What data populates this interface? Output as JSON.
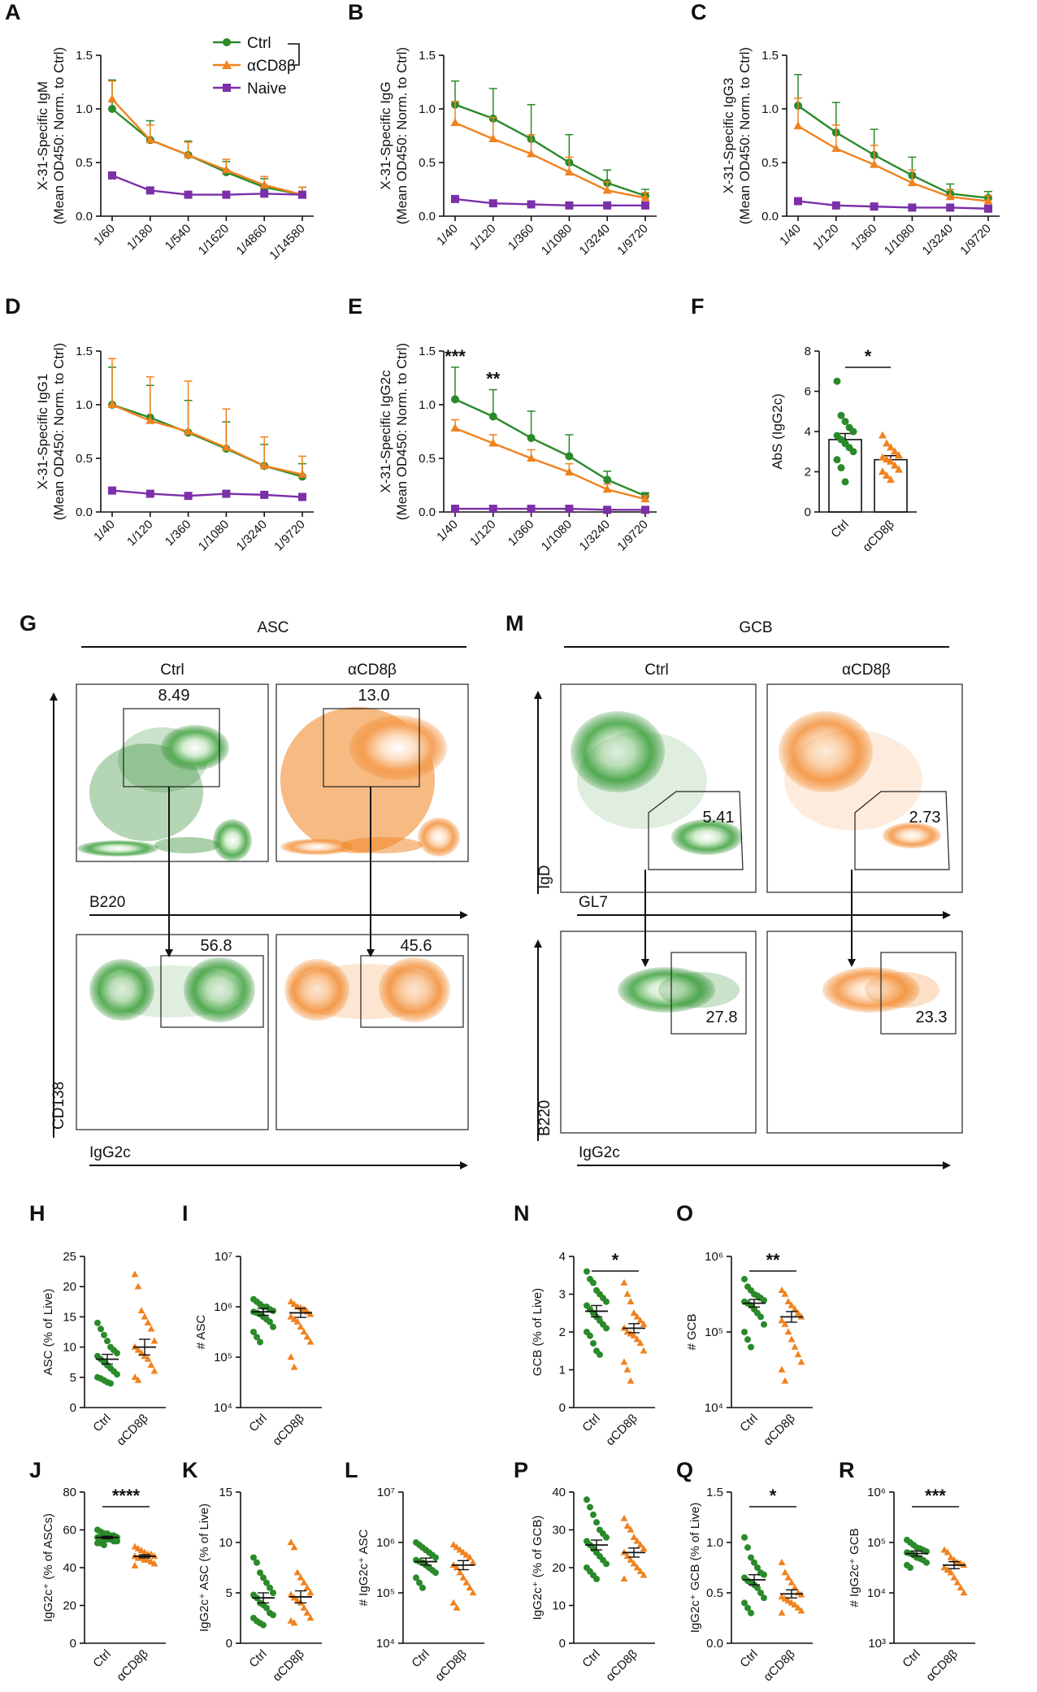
{
  "colors": {
    "ctrl": "#2a8a2a",
    "cd8": "#f0821e",
    "naive": "#7b2fa8",
    "axis": "#111111"
  },
  "legend": {
    "ctrl": "Ctrl",
    "cd8": "αCD8β",
    "naive": "Naive"
  },
  "chart_data": [
    {
      "panel": "A",
      "type": "line",
      "ylabel": "X-31-Specific IgM",
      "ylabel2": "(Mean OD450: Norm. to Ctrl)",
      "categories": [
        "1/60",
        "1/180",
        "1/540",
        "1/1620",
        "1/4860",
        "1/14580"
      ],
      "ylim": [
        0,
        1.5
      ],
      "yticks": [
        "0.0",
        "0.5",
        "1.0",
        "1.5"
      ],
      "series": [
        {
          "name": "Ctrl",
          "values": [
            1.0,
            0.71,
            0.57,
            0.41,
            0.27,
            0.2
          ],
          "err": [
            0.27,
            0.18,
            0.13,
            0.1,
            0.08,
            0.07
          ]
        },
        {
          "name": "αCD8β",
          "values": [
            1.09,
            0.71,
            0.57,
            0.43,
            0.29,
            0.2
          ],
          "err": [
            0.17,
            0.14,
            0.12,
            0.1,
            0.08,
            0.07
          ]
        },
        {
          "name": "Naive",
          "values": [
            0.38,
            0.24,
            0.2,
            0.2,
            0.21,
            0.2
          ],
          "err": [
            0,
            0,
            0,
            0,
            0,
            0
          ]
        }
      ]
    },
    {
      "panel": "B",
      "type": "line",
      "ylabel": "X-31-Specific IgG",
      "ylabel2": "(Mean OD450: Norm. to Ctrl)",
      "categories": [
        "1/40",
        "1/120",
        "1/360",
        "1/1080",
        "1/3240",
        "1/9720"
      ],
      "ylim": [
        0,
        1.5
      ],
      "yticks": [
        "0.0",
        "0.5",
        "1.0",
        "1.5"
      ],
      "series": [
        {
          "name": "Ctrl",
          "values": [
            1.04,
            0.91,
            0.72,
            0.5,
            0.31,
            0.19
          ],
          "err": [
            0.22,
            0.28,
            0.32,
            0.26,
            0.12,
            0.06
          ]
        },
        {
          "name": "αCD8β",
          "values": [
            0.87,
            0.72,
            0.58,
            0.41,
            0.24,
            0.17
          ],
          "err": [
            0.2,
            0.2,
            0.18,
            0.14,
            0.08,
            0.05
          ]
        },
        {
          "name": "Naive",
          "values": [
            0.16,
            0.12,
            0.11,
            0.1,
            0.1,
            0.1
          ],
          "err": [
            0,
            0,
            0,
            0,
            0,
            0
          ]
        }
      ]
    },
    {
      "panel": "C",
      "type": "line",
      "ylabel": "X-31-Specific IgG3",
      "ylabel2": "(Mean OD450: Norm. to Ctrl)",
      "categories": [
        "1/40",
        "1/120",
        "1/360",
        "1/1080",
        "1/3240",
        "1/9720"
      ],
      "ylim": [
        0,
        1.5
      ],
      "yticks": [
        "0.0",
        "0.5",
        "1.0",
        "1.5"
      ],
      "series": [
        {
          "name": "Ctrl",
          "values": [
            1.03,
            0.78,
            0.57,
            0.38,
            0.21,
            0.17
          ],
          "err": [
            0.29,
            0.28,
            0.24,
            0.17,
            0.09,
            0.06
          ]
        },
        {
          "name": "αCD8β",
          "values": [
            0.84,
            0.63,
            0.48,
            0.31,
            0.18,
            0.14
          ],
          "err": [
            0.26,
            0.22,
            0.18,
            0.12,
            0.07,
            0.05
          ]
        },
        {
          "name": "Naive",
          "values": [
            0.14,
            0.1,
            0.09,
            0.08,
            0.08,
            0.07
          ],
          "err": [
            0,
            0,
            0,
            0,
            0,
            0
          ]
        }
      ]
    },
    {
      "panel": "D",
      "type": "line",
      "ylabel": "X-31-Specific IgG1",
      "ylabel2": "(Mean OD450: Norm. to Ctrl)",
      "categories": [
        "1/40",
        "1/120",
        "1/360",
        "1/1080",
        "1/3240",
        "1/9720"
      ],
      "ylim": [
        0,
        1.5
      ],
      "yticks": [
        "0.0",
        "0.5",
        "1.0",
        "1.5"
      ],
      "series": [
        {
          "name": "Ctrl",
          "values": [
            1.0,
            0.88,
            0.74,
            0.59,
            0.43,
            0.33
          ],
          "err": [
            0.35,
            0.3,
            0.3,
            0.25,
            0.2,
            0.12
          ]
        },
        {
          "name": "αCD8β",
          "values": [
            1.0,
            0.85,
            0.75,
            0.6,
            0.43,
            0.35
          ],
          "err": [
            0.43,
            0.41,
            0.47,
            0.36,
            0.27,
            0.17
          ]
        },
        {
          "name": "Naive",
          "values": [
            0.2,
            0.17,
            0.15,
            0.17,
            0.16,
            0.14
          ],
          "err": [
            0,
            0,
            0,
            0,
            0,
            0
          ]
        }
      ]
    },
    {
      "panel": "E",
      "type": "line",
      "ylabel": "X-31-Specific IgG2c",
      "ylabel2": "(Mean OD450: Norm. to Ctrl)",
      "categories": [
        "1/40",
        "1/120",
        "1/360",
        "1/1080",
        "1/3240",
        "1/9720"
      ],
      "ylim": [
        0,
        1.5
      ],
      "yticks": [
        "0.0",
        "0.5",
        "1.0",
        "1.5"
      ],
      "annotations": [
        {
          "index": 0,
          "text": "***"
        },
        {
          "index": 1,
          "text": "**"
        }
      ],
      "series": [
        {
          "name": "Ctrl",
          "values": [
            1.05,
            0.89,
            0.69,
            0.52,
            0.3,
            0.15
          ],
          "err": [
            0.3,
            0.25,
            0.25,
            0.2,
            0.08,
            0.03
          ]
        },
        {
          "name": "αCD8β",
          "values": [
            0.78,
            0.64,
            0.5,
            0.37,
            0.21,
            0.12
          ],
          "err": [
            0.08,
            0.08,
            0.08,
            0.08,
            0.05,
            0.03
          ]
        },
        {
          "name": "Naive",
          "values": [
            0.03,
            0.03,
            0.03,
            0.03,
            0.02,
            0.02
          ],
          "err": [
            0,
            0,
            0,
            0,
            0,
            0
          ]
        }
      ]
    },
    {
      "panel": "F",
      "type": "bar",
      "ylabel": "AbS (IgG2c)",
      "categories": [
        "Ctrl",
        "αCD8β"
      ],
      "values": [
        3.6,
        2.6
      ],
      "sem": [
        0.3,
        0.2
      ],
      "ylim": [
        0,
        8
      ],
      "yticks": [
        "0",
        "2",
        "4",
        "6",
        "8"
      ],
      "sig": "*",
      "points": [
        [
          6.5,
          4.8,
          4.5,
          4.2,
          4.0,
          3.8,
          3.6,
          3.4,
          3.2,
          3.0,
          2.6,
          2.2,
          1.5
        ],
        [
          3.8,
          3.4,
          3.2,
          3.0,
          2.8,
          2.7,
          2.6,
          2.5,
          2.3,
          2.1,
          2.0,
          1.8,
          1.6
        ]
      ]
    },
    {
      "panel": "H",
      "type": "scatter",
      "ylabel": "ASC (% of Live)",
      "categories": [
        "Ctrl",
        "αCD8β"
      ],
      "scale": "linear",
      "ylim": [
        0,
        25
      ],
      "yticks": [
        "0",
        "5",
        "10",
        "15",
        "20",
        "25"
      ],
      "means": [
        8.0,
        10.0
      ],
      "sem": [
        0.8,
        1.3
      ],
      "sig": "",
      "points": [
        [
          14,
          13,
          12,
          11,
          10,
          9.5,
          9,
          8.5,
          8,
          7.5,
          7,
          6.5,
          6,
          5.5,
          5,
          4.8,
          4.5,
          4.2,
          4
        ],
        [
          22,
          20,
          16,
          15,
          14,
          13,
          11,
          10,
          9.5,
          9,
          8.5,
          8,
          7,
          6,
          5,
          4.5
        ]
      ]
    },
    {
      "panel": "I",
      "type": "scatter",
      "ylabel": "# ASC",
      "categories": [
        "Ctrl",
        "αCD8β"
      ],
      "scale": "log",
      "ylim": [
        4,
        7
      ],
      "yticks": [
        "10⁴",
        "10⁵",
        "10⁶",
        "10⁷"
      ],
      "means": [
        5.9,
        5.88
      ],
      "sem": [
        0.07,
        0.09
      ],
      "sig": "",
      "points": [
        [
          6.15,
          6.1,
          6.05,
          6.0,
          6.0,
          5.95,
          5.92,
          5.9,
          5.88,
          5.85,
          5.8,
          5.75,
          5.7,
          5.6,
          5.5,
          5.4,
          5.3
        ],
        [
          6.1,
          6.05,
          6.0,
          5.98,
          5.95,
          5.9,
          5.85,
          5.8,
          5.75,
          5.7,
          5.6,
          5.5,
          5.4,
          5.3,
          5.0,
          4.8
        ]
      ]
    },
    {
      "panel": "N",
      "type": "scatter",
      "ylabel": "GCB (% of Live)",
      "categories": [
        "Ctrl",
        "αCD8β"
      ],
      "scale": "linear",
      "ylim": [
        0,
        4
      ],
      "yticks": [
        "0",
        "1",
        "2",
        "3",
        "4"
      ],
      "means": [
        2.55,
        2.1
      ],
      "sem": [
        0.15,
        0.12
      ],
      "sig": "*",
      "points": [
        [
          3.6,
          3.4,
          3.3,
          3.1,
          3.0,
          2.9,
          2.8,
          2.7,
          2.6,
          2.5,
          2.4,
          2.3,
          2.2,
          2.1,
          2.0,
          1.9,
          1.7,
          1.5,
          1.4
        ],
        [
          3.3,
          3.0,
          2.8,
          2.5,
          2.4,
          2.3,
          2.2,
          2.1,
          2.0,
          1.95,
          1.9,
          1.8,
          1.7,
          1.5,
          1.2,
          1.0,
          0.7
        ]
      ]
    },
    {
      "panel": "O",
      "type": "scatter",
      "ylabel": "# GCB",
      "categories": [
        "Ctrl",
        "αCD8β"
      ],
      "scale": "log",
      "ylim": [
        4,
        6
      ],
      "yticks": [
        "10⁴",
        "10⁵",
        "10⁶"
      ],
      "means": [
        5.38,
        5.2
      ],
      "sem": [
        0.05,
        0.07
      ],
      "sig": "**",
      "points": [
        [
          5.7,
          5.6,
          5.55,
          5.5,
          5.48,
          5.45,
          5.42,
          5.4,
          5.38,
          5.35,
          5.3,
          5.25,
          5.2,
          5.1,
          5.0,
          4.9,
          4.8
        ],
        [
          5.55,
          5.5,
          5.4,
          5.35,
          5.3,
          5.25,
          5.2,
          5.15,
          5.1,
          5.0,
          4.9,
          4.8,
          4.7,
          4.6,
          4.5,
          4.35
        ]
      ]
    },
    {
      "panel": "J",
      "type": "scatter",
      "ylabel": "IgG2c⁺ (% of ASCs)",
      "categories": [
        "Ctrl",
        "αCD8β"
      ],
      "scale": "linear",
      "ylim": [
        0,
        80
      ],
      "yticks": [
        "0",
        "20",
        "40",
        "60",
        "80"
      ],
      "means": [
        56,
        46
      ],
      "sem": [
        0.6,
        0.8
      ],
      "sig": "****",
      "points": [
        [
          60,
          59,
          58,
          58,
          57,
          57,
          56,
          56,
          56,
          55,
          55,
          55,
          54,
          54,
          53,
          53,
          52
        ],
        [
          51,
          50,
          49,
          48,
          47,
          47,
          46,
          46,
          45,
          45,
          44,
          44,
          43,
          42,
          41
        ]
      ]
    },
    {
      "panel": "K",
      "type": "scatter",
      "ylabel": "IgG2c⁺ ASC (% of Live)",
      "categories": [
        "Ctrl",
        "αCD8β"
      ],
      "scale": "linear",
      "ylim": [
        0,
        15
      ],
      "yticks": [
        "0",
        "5",
        "10",
        "15"
      ],
      "means": [
        4.5,
        4.6
      ],
      "sem": [
        0.5,
        0.6
      ],
      "sig": "",
      "points": [
        [
          8.5,
          8,
          7,
          6.5,
          6,
          5.5,
          5,
          4.8,
          4.5,
          4,
          3.8,
          3.5,
          3,
          2.8,
          2.5,
          2.2,
          2,
          1.8
        ],
        [
          10,
          9.5,
          7,
          6.5,
          6,
          5.5,
          5,
          4.8,
          4.5,
          4.2,
          4,
          3.5,
          3,
          2.5,
          2.2,
          2
        ]
      ]
    },
    {
      "panel": "L",
      "type": "scatter",
      "ylabel": "# IgG2c⁺ ASC",
      "categories": [
        "Ctrl",
        "αCD8β"
      ],
      "scale": "log",
      "ylim": [
        4,
        7
      ],
      "yticks": [
        "10⁴",
        "10⁵",
        "10⁶",
        "10⁷"
      ],
      "means": [
        5.62,
        5.55
      ],
      "sem": [
        0.07,
        0.09
      ],
      "sig": "",
      "points": [
        [
          6.0,
          5.95,
          5.9,
          5.85,
          5.8,
          5.75,
          5.7,
          5.65,
          5.62,
          5.6,
          5.55,
          5.5,
          5.45,
          5.4,
          5.3,
          5.2,
          5.1
        ],
        [
          5.95,
          5.9,
          5.85,
          5.8,
          5.75,
          5.7,
          5.6,
          5.55,
          5.5,
          5.4,
          5.3,
          5.2,
          5.1,
          5.0,
          4.8,
          4.7
        ]
      ]
    },
    {
      "panel": "P",
      "type": "scatter",
      "ylabel": "IgG2c⁺ (% of GCB)",
      "categories": [
        "Ctrl",
        "αCD8β"
      ],
      "scale": "linear",
      "ylim": [
        0,
        40
      ],
      "yticks": [
        "0",
        "10",
        "20",
        "30",
        "40"
      ],
      "means": [
        26,
        24
      ],
      "sem": [
        1.3,
        1.2
      ],
      "sig": "",
      "points": [
        [
          38,
          36,
          34,
          32,
          30,
          29,
          28,
          27,
          26,
          25,
          24,
          23,
          22,
          21,
          20,
          19,
          18,
          17
        ],
        [
          33,
          31,
          30,
          28,
          27,
          26,
          25,
          24,
          23,
          22,
          21,
          20,
          19,
          18,
          17
        ]
      ]
    },
    {
      "panel": "Q",
      "type": "scatter",
      "ylabel": "IgG2c⁺ GCB (% of Live)",
      "categories": [
        "Ctrl",
        "αCD8β"
      ],
      "scale": "linear",
      "ylim": [
        0,
        1.5
      ],
      "yticks": [
        "0.0",
        "0.5",
        "1.0",
        "1.5"
      ],
      "means": [
        0.63,
        0.49
      ],
      "sem": [
        0.05,
        0.04
      ],
      "sig": "*",
      "points": [
        [
          1.05,
          0.95,
          0.85,
          0.8,
          0.75,
          0.7,
          0.68,
          0.65,
          0.62,
          0.6,
          0.58,
          0.55,
          0.5,
          0.45,
          0.4,
          0.35,
          0.3
        ],
        [
          0.8,
          0.7,
          0.65,
          0.6,
          0.55,
          0.5,
          0.48,
          0.46,
          0.44,
          0.42,
          0.4,
          0.38,
          0.35,
          0.32,
          0.3
        ]
      ]
    },
    {
      "panel": "R",
      "type": "scatter",
      "ylabel": "# IgG2c⁺ GCB",
      "categories": [
        "Ctrl",
        "αCD8β"
      ],
      "scale": "log",
      "ylim": [
        3,
        6
      ],
      "yticks": [
        "10³",
        "10⁴",
        "10⁵",
        "10⁶"
      ],
      "means": [
        4.78,
        4.55
      ],
      "sem": [
        0.05,
        0.07
      ],
      "sig": "***",
      "points": [
        [
          5.05,
          5.0,
          4.95,
          4.9,
          4.88,
          4.85,
          4.82,
          4.8,
          4.78,
          4.75,
          4.7,
          4.68,
          4.65,
          4.6,
          4.55,
          4.5
        ],
        [
          4.85,
          4.8,
          4.7,
          4.65,
          4.6,
          4.58,
          4.55,
          4.5,
          4.45,
          4.4,
          4.3,
          4.2,
          4.1,
          4.0
        ]
      ]
    }
  ],
  "flow": {
    "G": {
      "letter": "G",
      "title": "ASC",
      "ctrl": "Ctrl",
      "cd8": "αCD8β",
      "xaxis_top": "B220",
      "xaxis_bottom": "IgG2c",
      "yaxis": "CD138",
      "gates_top": [
        "8.49",
        "13.0"
      ],
      "gates_bottom": [
        "56.8",
        "45.6"
      ]
    },
    "M": {
      "letter": "M",
      "title": "GCB",
      "ctrl": "Ctrl",
      "cd8": "αCD8β",
      "xaxis_top": "GL7",
      "xaxis_bottom": "IgG2c",
      "yaxis_top": "IgD",
      "yaxis_bottom": "B220",
      "gates_top": [
        "5.41",
        "2.73"
      ],
      "gates_bottom": [
        "27.8",
        "23.3"
      ]
    }
  }
}
